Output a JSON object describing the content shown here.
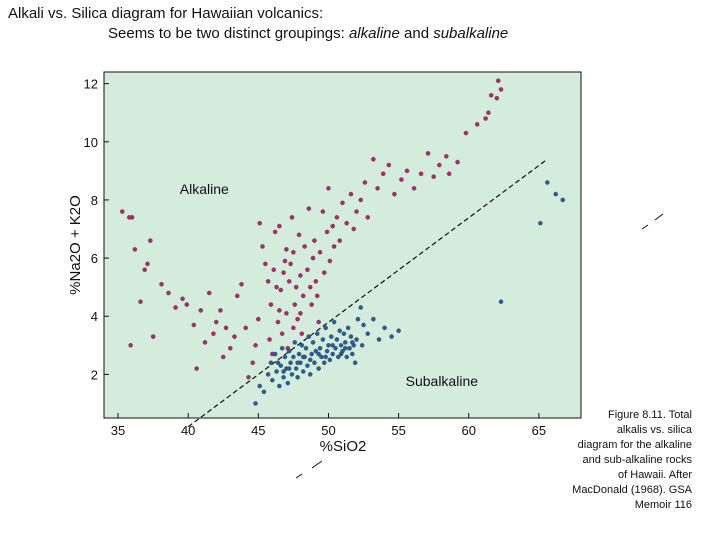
{
  "slide": {
    "title_line1": "Alkali vs. Silica diagram for Hawaiian volcanics:",
    "title_line2_prefix": "Seems to be two distinct groupings: ",
    "title_alkaline": "alkaline",
    "title_and": " and ",
    "title_subalkaline": "subalkaline"
  },
  "caption": {
    "line1": "Figure 8.11. Total",
    "line2": "alkalis vs. silica",
    "line3": "diagram for the alkaline",
    "line4": "and sub-alkaline rocks",
    "line5": "of Hawaii. After",
    "line6": "MacDonald (1968). GSA",
    "line7": "Memoir 116"
  },
  "colors": {
    "plot_background": "#d4ecdc",
    "alkaline_points": "#b8246e",
    "subalkaline_points": "#25609e"
  },
  "chart_data": {
    "type": "scatter",
    "xlabel": "%SiO2",
    "ylabel": "%Na2O + K2O",
    "xlim": [
      34,
      68
    ],
    "ylim": [
      0.5,
      12.4
    ],
    "xticks": [
      35,
      40,
      45,
      50,
      55,
      60,
      65
    ],
    "yticks": [
      2,
      4,
      6,
      8,
      10,
      12
    ],
    "grid": false,
    "region_labels": [
      {
        "text": "Alkaline",
        "x": 39.4,
        "y": 8.2
      },
      {
        "text": "Subalkaline",
        "x": 55.5,
        "y": 1.6
      }
    ],
    "divider_line": {
      "style": "dashed",
      "points": [
        [
          40,
          0.2
        ],
        [
          65.6,
          9.4
        ]
      ]
    },
    "series": [
      {
        "color": "#b8246e",
        "points": [
          [
            35.3,
            7.6
          ],
          [
            35.8,
            7.4
          ],
          [
            36.0,
            7.4
          ],
          [
            36.2,
            6.3
          ],
          [
            36.6,
            4.5
          ],
          [
            36.9,
            5.6
          ],
          [
            37.1,
            5.8
          ],
          [
            37.3,
            6.6
          ],
          [
            37.5,
            3.3
          ],
          [
            35.9,
            3.0
          ],
          [
            38.1,
            5.1
          ],
          [
            38.6,
            4.8
          ],
          [
            39.1,
            4.3
          ],
          [
            39.6,
            4.6
          ],
          [
            39.9,
            4.4
          ],
          [
            40.4,
            3.7
          ],
          [
            40.6,
            2.2
          ],
          [
            40.9,
            4.2
          ],
          [
            41.2,
            3.1
          ],
          [
            41.5,
            4.8
          ],
          [
            41.8,
            3.4
          ],
          [
            42.0,
            3.8
          ],
          [
            42.3,
            4.2
          ],
          [
            42.5,
            2.6
          ],
          [
            42.7,
            3.6
          ],
          [
            43.0,
            2.9
          ],
          [
            43.3,
            3.3
          ],
          [
            43.5,
            4.7
          ],
          [
            43.8,
            5.1
          ],
          [
            44.1,
            3.6
          ],
          [
            44.3,
            1.9
          ],
          [
            44.6,
            2.4
          ],
          [
            44.8,
            3.0
          ],
          [
            45.0,
            3.9
          ],
          [
            45.1,
            7.2
          ],
          [
            45.3,
            6.4
          ],
          [
            45.5,
            5.8
          ],
          [
            45.7,
            5.2
          ],
          [
            45.8,
            3.2
          ],
          [
            45.9,
            4.4
          ],
          [
            46.0,
            2.7
          ],
          [
            46.1,
            5.6
          ],
          [
            46.2,
            6.9
          ],
          [
            46.3,
            5.0
          ],
          [
            46.4,
            3.8
          ],
          [
            46.5,
            4.2
          ],
          [
            46.5,
            7.1
          ],
          [
            46.6,
            4.9
          ],
          [
            46.7,
            3.4
          ],
          [
            46.8,
            5.5
          ],
          [
            46.9,
            5.9
          ],
          [
            47.0,
            6.3
          ],
          [
            47.0,
            4.1
          ],
          [
            47.1,
            2.9
          ],
          [
            47.2,
            5.2
          ],
          [
            47.3,
            5.8
          ],
          [
            47.4,
            7.4
          ],
          [
            47.5,
            6.2
          ],
          [
            47.5,
            3.6
          ],
          [
            47.6,
            4.4
          ],
          [
            47.7,
            5.0
          ],
          [
            47.8,
            3.9
          ],
          [
            47.9,
            6.8
          ],
          [
            48.0,
            5.4
          ],
          [
            48.0,
            4.1
          ],
          [
            48.1,
            3.4
          ],
          [
            48.2,
            4.7
          ],
          [
            48.3,
            6.4
          ],
          [
            48.5,
            5.6
          ],
          [
            48.6,
            7.7
          ],
          [
            48.7,
            5.0
          ],
          [
            48.8,
            4.4
          ],
          [
            48.9,
            6.0
          ],
          [
            49.0,
            6.6
          ],
          [
            49.1,
            5.2
          ],
          [
            49.2,
            4.7
          ],
          [
            49.3,
            3.8
          ],
          [
            49.4,
            6.2
          ],
          [
            49.6,
            7.6
          ],
          [
            49.7,
            5.5
          ],
          [
            49.9,
            6.9
          ],
          [
            50.0,
            8.4
          ],
          [
            50.1,
            5.9
          ],
          [
            50.3,
            7.1
          ],
          [
            50.4,
            6.4
          ],
          [
            50.6,
            7.4
          ],
          [
            50.8,
            6.6
          ],
          [
            51.0,
            7.9
          ],
          [
            51.3,
            7.2
          ],
          [
            51.6,
            8.2
          ],
          [
            51.8,
            7.0
          ],
          [
            52.0,
            7.6
          ],
          [
            52.3,
            8.0
          ],
          [
            52.6,
            8.6
          ],
          [
            52.8,
            7.4
          ],
          [
            53.2,
            9.4
          ],
          [
            53.5,
            8.4
          ],
          [
            53.9,
            8.9
          ],
          [
            54.3,
            9.2
          ],
          [
            54.7,
            8.2
          ],
          [
            55.2,
            8.7
          ],
          [
            55.6,
            9.0
          ],
          [
            56.1,
            8.4
          ],
          [
            56.6,
            8.9
          ],
          [
            57.1,
            9.6
          ],
          [
            57.5,
            8.8
          ],
          [
            57.9,
            9.2
          ],
          [
            58.4,
            9.5
          ],
          [
            58.6,
            8.9
          ],
          [
            59.2,
            9.3
          ],
          [
            59.8,
            10.3
          ],
          [
            60.6,
            10.6
          ],
          [
            61.2,
            10.8
          ],
          [
            61.4,
            11.0
          ],
          [
            61.6,
            11.6
          ],
          [
            62.0,
            11.5
          ],
          [
            62.1,
            12.1
          ],
          [
            62.3,
            11.8
          ]
        ]
      },
      {
        "color": "#25609e",
        "points": [
          [
            44.8,
            1.0
          ],
          [
            45.1,
            1.6
          ],
          [
            45.4,
            1.4
          ],
          [
            45.7,
            2.0
          ],
          [
            45.9,
            2.4
          ],
          [
            46.0,
            1.8
          ],
          [
            46.2,
            2.7
          ],
          [
            46.3,
            2.1
          ],
          [
            46.5,
            1.6
          ],
          [
            46.6,
            2.3
          ],
          [
            46.7,
            2.9
          ],
          [
            46.8,
            1.9
          ],
          [
            46.9,
            2.6
          ],
          [
            47.0,
            2.2
          ],
          [
            47.1,
            1.7
          ],
          [
            47.2,
            2.8
          ],
          [
            47.3,
            2.4
          ],
          [
            47.4,
            2.0
          ],
          [
            47.5,
            2.6
          ],
          [
            47.6,
            3.1
          ],
          [
            47.7,
            2.2
          ],
          [
            47.8,
            1.9
          ],
          [
            47.9,
            2.7
          ],
          [
            48.0,
            2.4
          ],
          [
            48.1,
            3.0
          ],
          [
            48.2,
            2.1
          ],
          [
            48.3,
            2.6
          ],
          [
            48.4,
            2.9
          ],
          [
            48.5,
            2.3
          ],
          [
            48.6,
            3.3
          ],
          [
            48.7,
            2.0
          ],
          [
            48.8,
            2.7
          ],
          [
            48.9,
            3.1
          ],
          [
            49.0,
            2.4
          ],
          [
            49.1,
            2.8
          ],
          [
            49.2,
            3.4
          ],
          [
            49.3,
            2.2
          ],
          [
            49.4,
            2.9
          ],
          [
            49.5,
            2.6
          ],
          [
            49.6,
            3.2
          ],
          [
            49.7,
            2.4
          ],
          [
            49.8,
            3.6
          ],
          [
            49.9,
            2.8
          ],
          [
            50.0,
            3.0
          ],
          [
            50.1,
            2.5
          ],
          [
            50.2,
            3.3
          ],
          [
            50.3,
            2.7
          ],
          [
            50.4,
            3.8
          ],
          [
            50.5,
            2.9
          ],
          [
            50.6,
            3.2
          ],
          [
            50.7,
            2.6
          ],
          [
            50.8,
            3.5
          ],
          [
            50.9,
            3.0
          ],
          [
            51.0,
            2.8
          ],
          [
            51.1,
            3.4
          ],
          [
            51.2,
            3.1
          ],
          [
            51.3,
            2.6
          ],
          [
            51.4,
            3.6
          ],
          [
            51.5,
            2.9
          ],
          [
            51.6,
            3.3
          ],
          [
            51.7,
            2.7
          ],
          [
            51.8,
            3.0
          ],
          [
            51.9,
            2.4
          ],
          [
            52.0,
            3.2
          ],
          [
            52.1,
            3.9
          ],
          [
            52.3,
            4.3
          ],
          [
            52.5,
            3.7
          ],
          [
            52.8,
            3.4
          ],
          [
            53.2,
            3.9
          ],
          [
            53.6,
            3.2
          ],
          [
            54.0,
            3.6
          ],
          [
            54.5,
            3.3
          ],
          [
            55.0,
            3.5
          ],
          [
            46.4,
            2.4
          ],
          [
            47.2,
            2.2
          ],
          [
            48.2,
            2.6
          ],
          [
            49.3,
            2.7
          ],
          [
            50.3,
            3.0
          ],
          [
            51.2,
            2.9
          ],
          [
            49.8,
            2.6
          ],
          [
            48.7,
            2.5
          ],
          [
            47.8,
            2.4
          ],
          [
            46.8,
            2.1
          ],
          [
            50.9,
            2.7
          ],
          [
            51.7,
            3.1
          ],
          [
            52.4,
            3.0
          ],
          [
            65.6,
            8.6
          ],
          [
            66.2,
            8.2
          ],
          [
            66.7,
            8.0
          ],
          [
            65.1,
            7.2
          ],
          [
            62.3,
            4.5
          ]
        ]
      }
    ]
  }
}
